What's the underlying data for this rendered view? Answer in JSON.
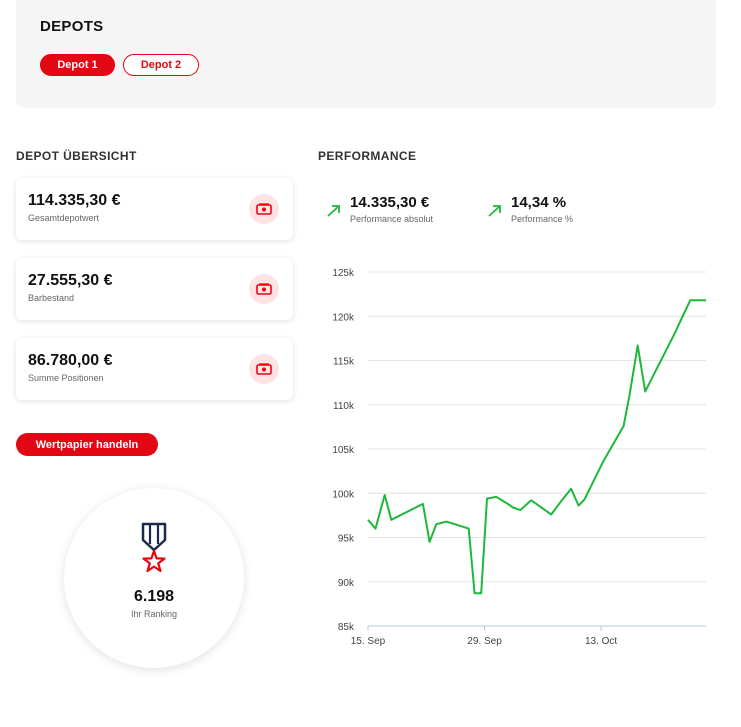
{
  "depots": {
    "title": "DEPOTS",
    "buttons": [
      {
        "label": "Depot 1",
        "active": true
      },
      {
        "label": "Depot 2",
        "active": false
      }
    ]
  },
  "overview": {
    "title": "DEPOT ÜBERSICHT",
    "cards": [
      {
        "value": "114.335,30 €",
        "label": "Gesamtdepotwert",
        "icon": "money-icon"
      },
      {
        "value": "27.555,30 €",
        "label": "Barbestand",
        "icon": "money-icon"
      },
      {
        "value": "86.780,00 €",
        "label": "Summe Positionen",
        "icon": "money-icon"
      }
    ],
    "trade_button": "Wertpapier handeln",
    "ranking": {
      "value": "6.198",
      "label": "Ihr Ranking",
      "icon": "medal-icon"
    }
  },
  "performance": {
    "title": "PERFORMANCE",
    "absolute": {
      "value": "14.335,30 €",
      "label": "Performance absolut",
      "icon": "trend-up-icon"
    },
    "percent": {
      "value": "14,34 %",
      "label": "Performance %",
      "icon": "trend-up-icon"
    }
  },
  "colors": {
    "accent": "#e30613",
    "positive": "#1db83a",
    "panel": "#f5f5f5"
  },
  "chart_data": {
    "type": "line",
    "title": "",
    "xlabel": "",
    "ylabel": "",
    "ylim": [
      85000,
      125000
    ],
    "yticks": [
      "125k",
      "120k",
      "115k",
      "110k",
      "105k",
      "100k",
      "95k",
      "90k",
      "85k"
    ],
    "xticks": [
      {
        "label": "15. Sep",
        "day": 15
      },
      {
        "label": "29. Sep",
        "day": 29
      },
      {
        "label": "13. Oct",
        "day": 43
      }
    ],
    "grid": true,
    "series": [
      {
        "color": "#1db83a",
        "x": [
          15,
          15.9,
          17,
          17.8,
          21.6,
          22.4,
          23.2,
          24.4,
          27.1,
          27.8,
          28.6,
          29.3,
          30.4,
          31.8,
          32.4,
          33.3,
          34.6,
          35.5,
          37,
          38.2,
          39.4,
          40.3,
          41,
          43.2,
          45.7,
          46.4,
          47.4,
          48.3,
          51.8,
          53.7,
          55.6
        ],
        "y": [
          97000,
          96000,
          99800,
          97000,
          98800,
          94500,
          96500,
          96800,
          96000,
          88700,
          88700,
          99400,
          99600,
          98800,
          98400,
          98100,
          99200,
          98600,
          97600,
          99100,
          100500,
          98600,
          99300,
          103500,
          107600,
          111000,
          116700,
          111500,
          118000,
          121800,
          121800
        ]
      }
    ]
  }
}
